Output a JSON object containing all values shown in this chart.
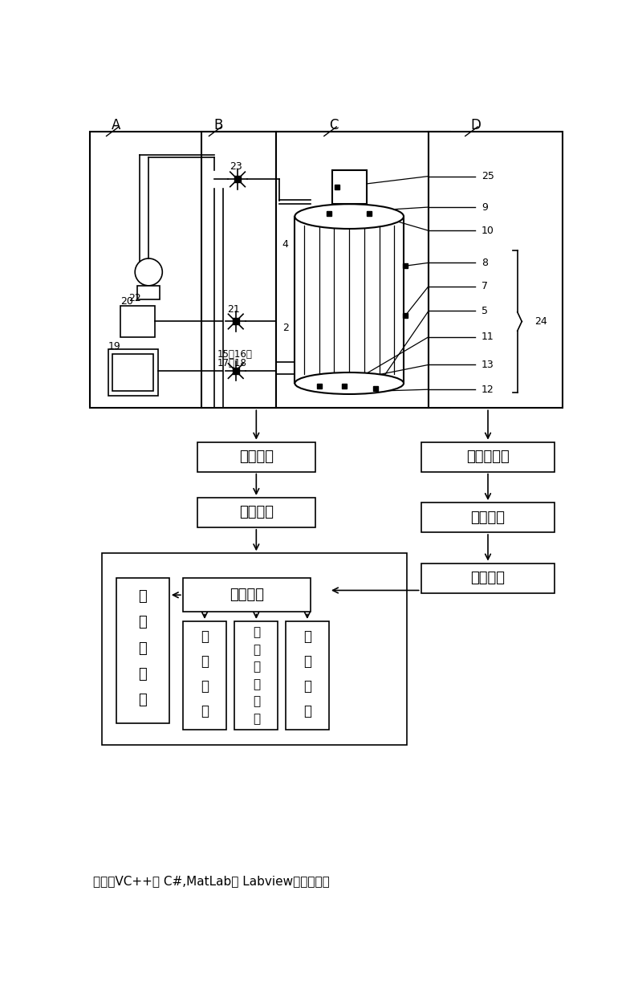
{
  "bg_color": "#ffffff",
  "line_color": "#000000",
  "fig_width": 8.0,
  "fig_height": 12.52,
  "bottom_text": "上位机VC++， C#,MatLab， Labview等开发环境",
  "label_A": "A",
  "label_B": "B",
  "label_C": "C",
  "label_D": "D",
  "num_25": "25",
  "num_9": "9",
  "num_10": "10",
  "num_8": "8",
  "num_7": "7",
  "num_5": "5",
  "num_11": "11",
  "num_13": "13",
  "num_12": "12",
  "num_24": "24",
  "num_22": "22",
  "num_23": "23",
  "num_20": "20",
  "num_21": "21",
  "num_19": "19",
  "num_15_18": "15、16、\n17、18",
  "num_4": "4",
  "num_2": "2",
  "text_drive": "驱动模块",
  "text_dac": "数模转换",
  "text_precond": "预调理电路",
  "text_mux": "多路开关",
  "text_adc": "模数转换",
  "text_dataproc": "数据处理",
  "text_display1": "显",
  "text_display2": "示",
  "text_display3": "和",
  "text_display4": "打",
  "text_display5": "印",
  "text_datafusion1": "数",
  "text_datafusion2": "据",
  "text_datafusion3": "融",
  "text_datafusion4": "合",
  "text_online1": "在",
  "text_online2": "线",
  "text_online3": "物",
  "text_online4": "性",
  "text_online5": "修",
  "text_online6": "正",
  "text_denoise1": "去",
  "text_denoise2": "噪",
  "text_denoise3": "处",
  "text_denoise4": "理"
}
